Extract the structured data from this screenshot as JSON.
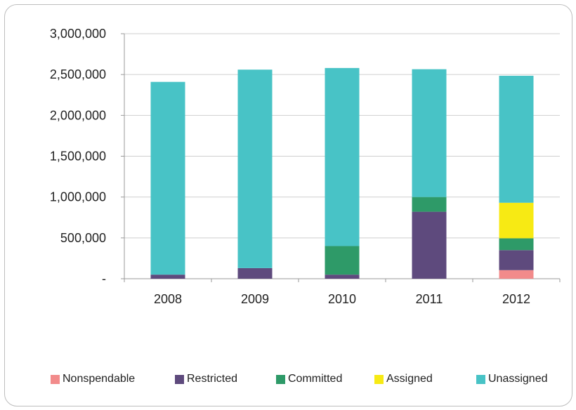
{
  "chart_data": {
    "type": "bar",
    "stacked": true,
    "categories": [
      "2008",
      "2009",
      "2010",
      "2011",
      "2012"
    ],
    "series": [
      {
        "name": "Nonspendable",
        "color": "#f28b8b",
        "values": [
          0,
          0,
          0,
          0,
          105000
        ]
      },
      {
        "name": "Restricted",
        "color": "#5e4a7d",
        "values": [
          50000,
          130000,
          50000,
          820000,
          245000
        ]
      },
      {
        "name": "Committed",
        "color": "#2e9a68",
        "values": [
          0,
          0,
          350000,
          180000,
          145000
        ]
      },
      {
        "name": "Assigned",
        "color": "#f7ea14",
        "values": [
          0,
          0,
          0,
          0,
          435000
        ]
      },
      {
        "name": "Unassigned",
        "color": "#48c3c6",
        "values": [
          2360000,
          2430000,
          2180000,
          1565000,
          1555000
        ]
      }
    ],
    "ylim": [
      0,
      3000000
    ],
    "yticks": [
      0,
      500000,
      1000000,
      1500000,
      2000000,
      2500000,
      3000000
    ],
    "ytick_labels": [
      "-",
      "500,000",
      "1,000,000",
      "1,500,000",
      "2,000,000",
      "2,500,000",
      "3,000,000"
    ],
    "grid": true,
    "legend_position": "bottom",
    "title": "",
    "xlabel": "",
    "ylabel": ""
  }
}
